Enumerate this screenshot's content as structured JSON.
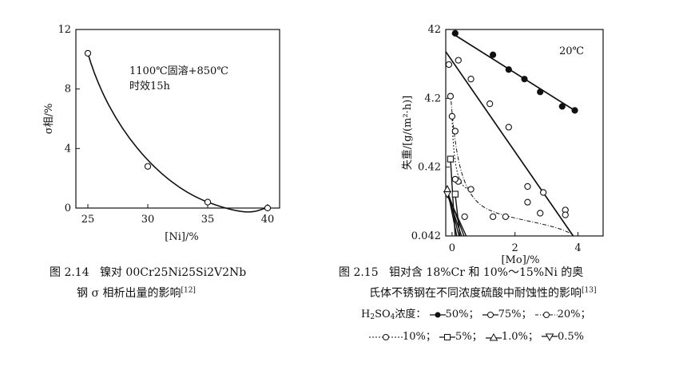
{
  "figure_left": {
    "caption_line1_prefix": "图 2.14",
    "caption_line1_text": "镍对 00Cr25Ni25Si2V2Nb",
    "caption_line2_text": "钢 σ 相析出量的影响",
    "caption_ref": "[12]"
  },
  "figure_right": {
    "caption_line1_prefix": "图 2.15",
    "caption_line1_text": "钼对含 18%Cr 和 10%～15%Ni 的奥",
    "caption_line2_text": "氏体不锈钢在不同浓度硫酸中耐蚀性的影响",
    "caption_ref": "[13]",
    "legend_line1_prefix": "H",
    "legend_line1_sub1": "2",
    "legend_line1_mid": "SO",
    "legend_line1_sub2": "4",
    "legend_line1_label": "浓度：",
    "legend_items": [
      "50%；",
      "75%；",
      "20%；",
      "10%；",
      "5%；",
      "1.0%；",
      "0.5%"
    ]
  },
  "chart_data": [
    {
      "type": "scatter",
      "title": "",
      "xlabel": "[Ni]/%",
      "ylabel": "σ相/%",
      "xlim": [
        24,
        41
      ],
      "ylim": [
        0,
        12
      ],
      "xticks": [
        "25",
        "30",
        "35",
        "40"
      ],
      "yticks": [
        "0",
        "4",
        "8",
        "12"
      ],
      "annotation": [
        "1100℃固溶+850℃",
        "时效15h"
      ],
      "series": [
        {
          "points": [
            [
              25,
              10.4
            ],
            [
              30,
              2.8
            ],
            [
              35,
              0.4
            ],
            [
              40,
              0.0
            ]
          ]
        }
      ]
    },
    {
      "type": "scatter",
      "title": "",
      "xlabel": "[Mo]/%",
      "ylabel": "失重/[g/(m²·h)]",
      "yscale": "log",
      "xlim": [
        -0.2,
        4.8
      ],
      "ylim": [
        0.042,
        42
      ],
      "xticks": [
        "0",
        "2",
        "4"
      ],
      "yticks": [
        "0.042",
        "0.42",
        "4.2",
        "42"
      ],
      "annotation": "20℃",
      "series": [
        {
          "name": "50%",
          "marker": "filled-circle",
          "points": [
            [
              0.1,
              37
            ],
            [
              1.3,
              18
            ],
            [
              1.8,
              11
            ],
            [
              2.3,
              8
            ],
            [
              2.8,
              5.2
            ],
            [
              3.5,
              3.2
            ],
            [
              3.9,
              2.8
            ]
          ]
        },
        {
          "name": "75%",
          "marker": "circle",
          "points": [
            [
              -0.1,
              13
            ],
            [
              0.2,
              15
            ],
            [
              0.6,
              8
            ],
            [
              1.2,
              3.5
            ],
            [
              1.8,
              1.6
            ],
            [
              2.4,
              0.22
            ],
            [
              2.9,
              0.18
            ],
            [
              3.6,
              0.1
            ]
          ]
        },
        {
          "name": "20%",
          "marker": "circle",
          "points": [
            [
              -0.05,
              4.5
            ],
            [
              0.1,
              1.4
            ],
            [
              0.2,
              0.26
            ],
            [
              0.4,
              0.08
            ],
            [
              1.3,
              0.08
            ],
            [
              1.7,
              0.08
            ],
            [
              2.4,
              0.13
            ],
            [
              2.8,
              0.09
            ],
            [
              3.6,
              0.085
            ]
          ]
        },
        {
          "name": "10%",
          "marker": "circle",
          "points": [
            [
              0.0,
              2.3
            ],
            [
              0.1,
              0.28
            ],
            [
              0.6,
              0.2
            ]
          ]
        },
        {
          "name": "5%",
          "marker": "square",
          "points": [
            [
              -0.05,
              0.55
            ],
            [
              0.1,
              0.17
            ]
          ]
        },
        {
          "name": "1.0%",
          "marker": "triangle-up",
          "points": [
            [
              -0.15,
              0.2
            ]
          ]
        },
        {
          "name": "0.5%",
          "marker": "triangle-down",
          "points": [
            [
              -0.15,
              0.17
            ]
          ]
        }
      ]
    }
  ]
}
